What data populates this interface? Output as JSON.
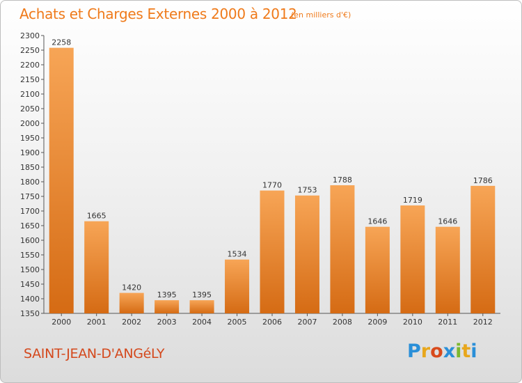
{
  "header": {
    "title": "Achats et Charges Externes 2000 à 2012",
    "subtitle": "(en milliers d'€)"
  },
  "footer": {
    "commune": "SAINT-JEAN-D'ANGéLY",
    "logo": "Proxiti"
  },
  "colors": {
    "bar_top": "#f7a556",
    "bar_bottom": "#d56b14",
    "title": "#ef7a1a",
    "commune": "#d4481c"
  },
  "chart_data": {
    "type": "bar",
    "title": "Achats et Charges Externes 2000 à 2012",
    "categories": [
      "2000",
      "2001",
      "2002",
      "2003",
      "2004",
      "2005",
      "2006",
      "2007",
      "2008",
      "2009",
      "2010",
      "2011",
      "2012"
    ],
    "values": [
      2258,
      1665,
      1420,
      1395,
      1395,
      1534,
      1770,
      1753,
      1788,
      1646,
      1719,
      1646,
      1786
    ],
    "ylim": [
      1350,
      2300
    ],
    "yticks": [
      1350,
      1400,
      1450,
      1500,
      1550,
      1600,
      1650,
      1700,
      1750,
      1800,
      1850,
      1900,
      1950,
      2000,
      2050,
      2100,
      2150,
      2200,
      2250,
      2300
    ],
    "grid": false,
    "data_labels": true
  }
}
